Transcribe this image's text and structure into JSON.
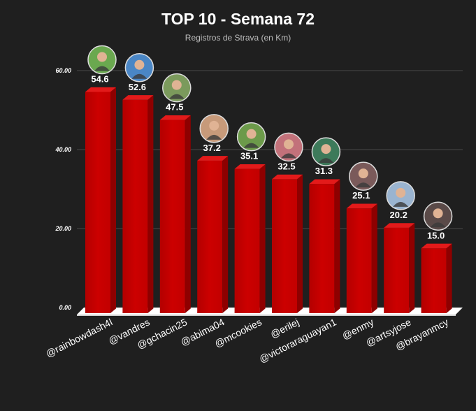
{
  "chart_data": {
    "type": "bar",
    "title": "TOP 10 - Semana 72",
    "subtitle": "Registros de Strava (en Km)",
    "categories": [
      "@rainbowdash4l",
      "@vandres",
      "@gchacin25",
      "@abima04",
      "@mcookies",
      "@erilej",
      "@victoraraguayan1",
      "@enmy",
      "@artsyjose",
      "@brayanmcy"
    ],
    "values": [
      54.6,
      52.6,
      47.5,
      37.2,
      35.1,
      32.5,
      31.3,
      25.1,
      20.2,
      15.0
    ],
    "value_labels": [
      "54.6",
      "52.6",
      "47.5",
      "37.2",
      "35.1",
      "32.5",
      "31.3",
      "25.1",
      "20.2",
      "15.0"
    ],
    "ylim": [
      0,
      60
    ],
    "yticks": [
      0,
      20,
      40,
      60
    ],
    "ytick_labels": [
      "0.00",
      "20.00",
      "40.00",
      "60.00"
    ],
    "grid": true,
    "legend": "none",
    "bar_color": "#cc0000",
    "bar_side_color": "#8e0000",
    "bar_top_color": "#e31a1a",
    "avatar_colors": [
      "#6aa84f",
      "#4a86c5",
      "#7b9a5c",
      "#c79a7a",
      "#6c9a4a",
      "#c2717a",
      "#3d7a5a",
      "#7a5a5a",
      "#9ab4d0",
      "#5a4a48"
    ]
  }
}
